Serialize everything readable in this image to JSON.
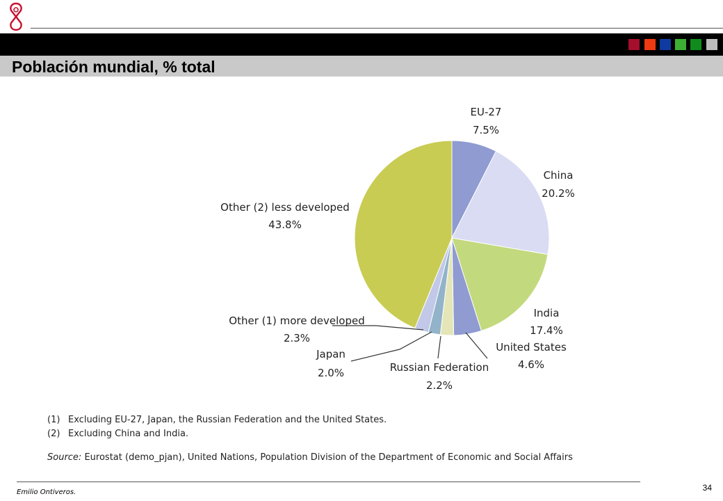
{
  "slide": {
    "title": "Población mundial, % total",
    "author": "Emilio Ontiveros.",
    "page_number": "34",
    "accent_squares": [
      "#a50e2c",
      "#ee3a12",
      "#0f3aa0",
      "#3cae34",
      "#0f8c1c",
      "#bdbdbd"
    ]
  },
  "chart_data": {
    "type": "pie",
    "title": "",
    "slices": [
      {
        "name": "EU-27",
        "value": 7.5,
        "label": "7.5%",
        "color": "#8f9bd1"
      },
      {
        "name": "China",
        "value": 20.2,
        "label": "20.2%",
        "color": "#d9dcf2"
      },
      {
        "name": "India",
        "value": 17.4,
        "label": "17.4%",
        "color": "#c3d97d"
      },
      {
        "name": "United States",
        "value": 4.6,
        "label": "4.6%",
        "color": "#8f9bd1"
      },
      {
        "name": "Russian Federation",
        "value": 2.2,
        "label": "2.2%",
        "color": "#e4e6b7"
      },
      {
        "name": "Japan",
        "value": 2.0,
        "label": "2.0%",
        "color": "#92b3c9"
      },
      {
        "name": "Other (1) more developed",
        "value": 2.3,
        "label": "2.3%",
        "color": "#c2c8e7"
      },
      {
        "name": "Other (2) less developed",
        "value": 43.8,
        "label": "43.8%",
        "color": "#c8cc52"
      }
    ]
  },
  "notes": {
    "note1_num": "(1)",
    "note1_text": "Excluding EU-27, Japan, the Russian Federation and the United States.",
    "note2_num": "(2)",
    "note2_text": "Excluding China and India.",
    "source_label": "Source:",
    "source_text": "Eurostat (demo_pjan), United Nations, Population Division of the Department of Economic and Social Affairs"
  }
}
